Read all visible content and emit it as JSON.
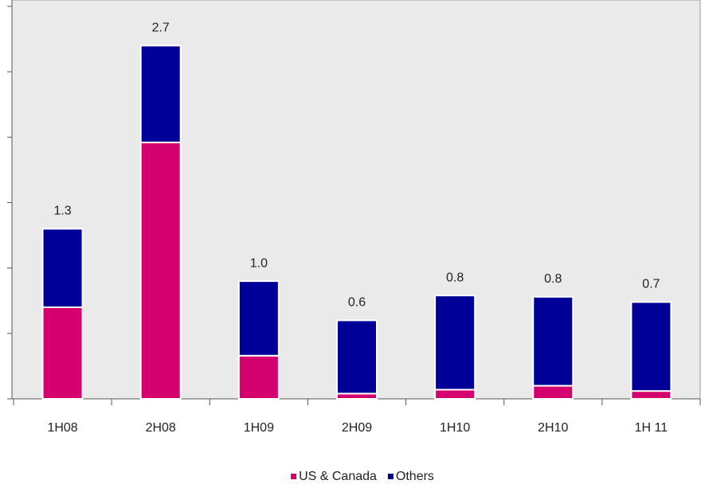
{
  "chart_data": {
    "type": "stacked-bar",
    "categories": [
      "1H08",
      "2H08",
      "1H09",
      "2H09",
      "1H10",
      "2H10",
      "1H 11"
    ],
    "series": [
      {
        "name": "US & Canada",
        "color": "#d4006f",
        "values": [
          0.7,
          1.96,
          0.33,
          0.04,
          0.07,
          0.1,
          0.06
        ]
      },
      {
        "name": "Others",
        "color": "#000099",
        "values": [
          0.6,
          0.74,
          0.57,
          0.56,
          0.72,
          0.68,
          0.68
        ]
      }
    ],
    "totals": [
      {
        "value": 1.3,
        "label": "1.3"
      },
      {
        "value": 2.7,
        "label": "2.7"
      },
      {
        "value": 1.0,
        "label": "1.0"
      },
      {
        "value": 0.6,
        "label": "0.6"
      },
      {
        "value": 0.8,
        "label": "0.8"
      },
      {
        "value": 0.8,
        "label": "0.8"
      },
      {
        "value": 0.7,
        "label": "0.7"
      }
    ],
    "ylim": [
      0,
      3
    ],
    "yticks": [
      0,
      0.5,
      1,
      1.5,
      2,
      2.5,
      3
    ],
    "legend": "bottom"
  }
}
